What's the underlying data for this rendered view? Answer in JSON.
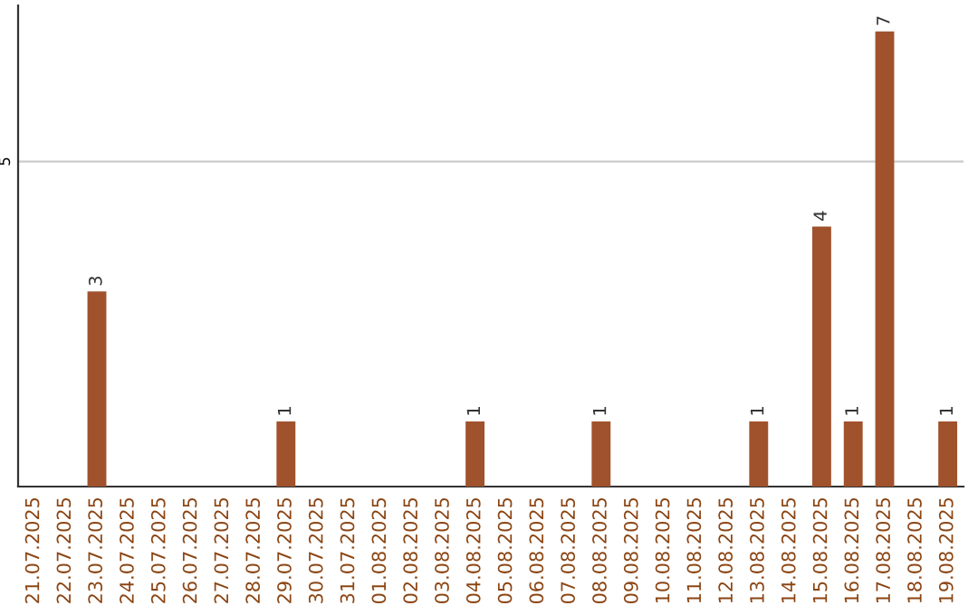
{
  "chart_data": {
    "type": "bar",
    "categories": [
      "21.07.2025",
      "22.07.2025",
      "23.07.2025",
      "24.07.2025",
      "25.07.2025",
      "26.07.2025",
      "27.07.2025",
      "28.07.2025",
      "29.07.2025",
      "30.07.2025",
      "31.07.2025",
      "01.08.2025",
      "02.08.2025",
      "03.08.2025",
      "04.08.2025",
      "05.08.2025",
      "06.08.2025",
      "07.08.2025",
      "08.08.2025",
      "09.08.2025",
      "10.08.2025",
      "11.08.2025",
      "12.08.2025",
      "13.08.2025",
      "14.08.2025",
      "15.08.2025",
      "16.08.2025",
      "17.08.2025",
      "18.08.2025",
      "19.08.2025"
    ],
    "values": [
      0,
      0,
      3,
      0,
      0,
      0,
      0,
      0,
      1,
      0,
      0,
      0,
      0,
      0,
      1,
      0,
      0,
      0,
      1,
      0,
      0,
      0,
      0,
      1,
      0,
      4,
      1,
      7,
      0,
      1
    ],
    "value_labels": [
      null,
      null,
      "3",
      null,
      null,
      null,
      null,
      null,
      "1",
      null,
      null,
      null,
      null,
      null,
      "1",
      null,
      null,
      null,
      "1",
      null,
      null,
      null,
      null,
      "1",
      null,
      "4",
      "1",
      "7",
      null,
      "1"
    ],
    "color": "#a0522d",
    "ylim": [
      0,
      7.4
    ],
    "yticks": [
      5
    ],
    "grid": "y"
  }
}
